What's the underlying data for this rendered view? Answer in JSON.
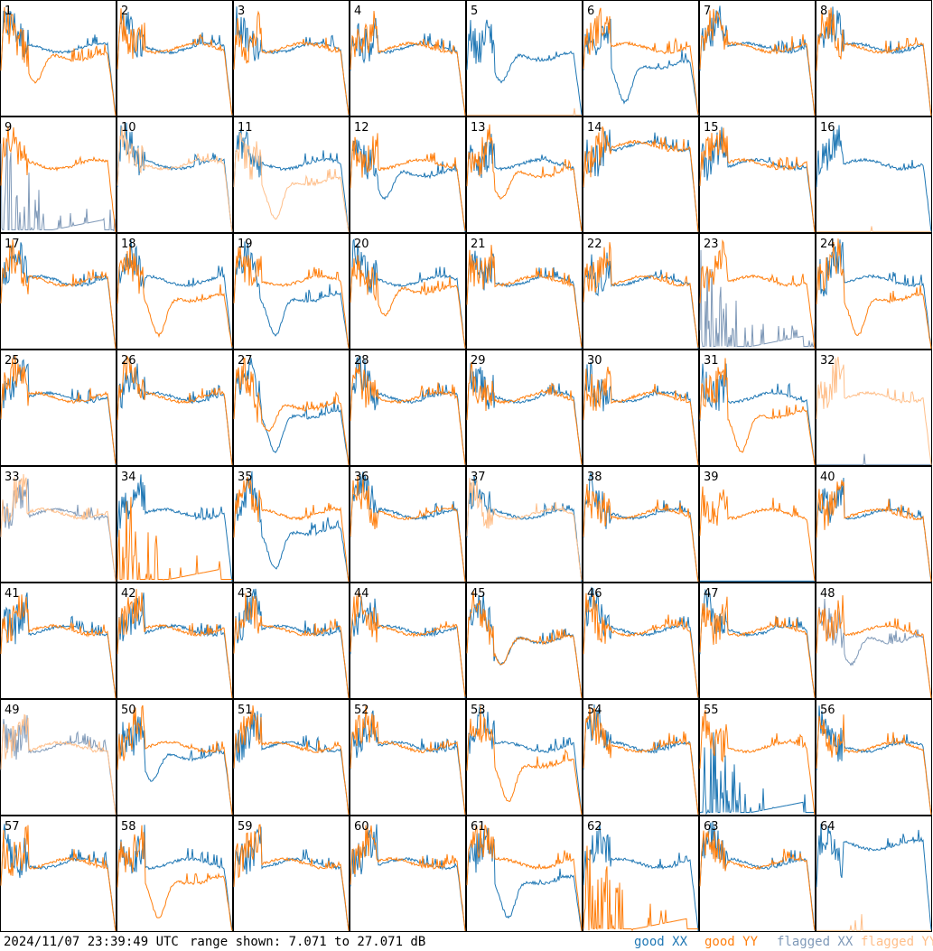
{
  "timestamp": "2024/11/07 23:39:49 UTC",
  "range_label": "range shown: 7.071 to 27.071 dB",
  "legend": {
    "good_xx": "good XX",
    "good_yy": "good YY",
    "flagged_xx": "flagged XX",
    "flagged_yy": "flagged YY"
  },
  "colors": {
    "good_xx": "#1f77b4",
    "good_yy": "#ff7f0e",
    "flagged_xx": "#7f99b8",
    "flagged_yy": "#ffbf8a",
    "frame": "#000000"
  },
  "chart_data": {
    "type": "line",
    "y_range_db": [
      7.071,
      27.071
    ],
    "layout": "8x8 grid of small multiples",
    "panels": [
      {
        "id": "1",
        "xx": "good",
        "yy": "good",
        "xx_shape": "normal",
        "yy_shape": "dip"
      },
      {
        "id": "2",
        "xx": "good",
        "yy": "good",
        "xx_shape": "normal",
        "yy_shape": "normal"
      },
      {
        "id": "3",
        "xx": "good",
        "yy": "good",
        "xx_shape": "normal",
        "yy_shape": "normal"
      },
      {
        "id": "4",
        "xx": "good",
        "yy": "good",
        "xx_shape": "normal",
        "yy_shape": "normal"
      },
      {
        "id": "5",
        "xx": "good",
        "yy": "flagged",
        "xx_shape": "dip",
        "yy_shape": "flat"
      },
      {
        "id": "6",
        "xx": "good",
        "yy": "good",
        "xx_shape": "lowdip",
        "yy_shape": "normal"
      },
      {
        "id": "7",
        "xx": "good",
        "yy": "good",
        "xx_shape": "normal",
        "yy_shape": "normal"
      },
      {
        "id": "8",
        "xx": "good",
        "yy": "good",
        "xx_shape": "normal",
        "yy_shape": "normal"
      },
      {
        "id": "9",
        "xx": "flagged",
        "yy": "good",
        "xx_shape": "spiky",
        "yy_shape": "normal"
      },
      {
        "id": "10",
        "xx": "good",
        "yy": "flagged",
        "xx_shape": "normal",
        "yy_shape": "normal"
      },
      {
        "id": "11",
        "xx": "good",
        "yy": "flagged",
        "xx_shape": "normal",
        "yy_shape": "lowdip"
      },
      {
        "id": "12",
        "xx": "good",
        "yy": "good",
        "xx_shape": "dip",
        "yy_shape": "normal"
      },
      {
        "id": "13",
        "xx": "good",
        "yy": "good",
        "xx_shape": "normal",
        "yy_shape": "dip"
      },
      {
        "id": "14",
        "xx": "good",
        "yy": "good",
        "xx_shape": "high",
        "yy_shape": "high"
      },
      {
        "id": "15",
        "xx": "good",
        "yy": "good",
        "xx_shape": "normal",
        "yy_shape": "normal"
      },
      {
        "id": "16",
        "xx": "good",
        "yy": "flagged",
        "xx_shape": "normal",
        "yy_shape": "flat"
      },
      {
        "id": "17",
        "xx": "good",
        "yy": "good",
        "xx_shape": "normal",
        "yy_shape": "normal"
      },
      {
        "id": "18",
        "xx": "good",
        "yy": "good",
        "xx_shape": "normal",
        "yy_shape": "lowdip"
      },
      {
        "id": "19",
        "xx": "good",
        "yy": "good",
        "xx_shape": "lowdip",
        "yy_shape": "normal"
      },
      {
        "id": "20",
        "xx": "good",
        "yy": "good",
        "xx_shape": "normal",
        "yy_shape": "dip"
      },
      {
        "id": "21",
        "xx": "good",
        "yy": "good",
        "xx_shape": "normal",
        "yy_shape": "normal"
      },
      {
        "id": "22",
        "xx": "good",
        "yy": "good",
        "xx_shape": "normal",
        "yy_shape": "normal"
      },
      {
        "id": "23",
        "xx": "flagged",
        "yy": "good",
        "xx_shape": "spiky",
        "yy_shape": "normal"
      },
      {
        "id": "24",
        "xx": "good",
        "yy": "good",
        "xx_shape": "normal",
        "yy_shape": "lowdip"
      },
      {
        "id": "25",
        "xx": "good",
        "yy": "good",
        "xx_shape": "normal",
        "yy_shape": "normal"
      },
      {
        "id": "26",
        "xx": "good",
        "yy": "good",
        "xx_shape": "normal",
        "yy_shape": "normal"
      },
      {
        "id": "27",
        "xx": "good",
        "yy": "good",
        "xx_shape": "lowdip",
        "yy_shape": "dip"
      },
      {
        "id": "28",
        "xx": "good",
        "yy": "good",
        "xx_shape": "normal",
        "yy_shape": "normal"
      },
      {
        "id": "29",
        "xx": "good",
        "yy": "good",
        "xx_shape": "normal",
        "yy_shape": "normal"
      },
      {
        "id": "30",
        "xx": "good",
        "yy": "good",
        "xx_shape": "normal",
        "yy_shape": "normal"
      },
      {
        "id": "31",
        "xx": "good",
        "yy": "good",
        "xx_shape": "normal",
        "yy_shape": "lowdip"
      },
      {
        "id": "32",
        "xx": "flagged",
        "yy": "flagged",
        "xx_shape": "flat",
        "yy_shape": "normal"
      },
      {
        "id": "33",
        "xx": "flagged",
        "yy": "flagged",
        "xx_shape": "normal",
        "yy_shape": "normal"
      },
      {
        "id": "34",
        "xx": "good",
        "yy": "good",
        "xx_shape": "normal",
        "yy_shape": "spiky"
      },
      {
        "id": "35",
        "xx": "good",
        "yy": "good",
        "xx_shape": "lowdip",
        "yy_shape": "normal"
      },
      {
        "id": "36",
        "xx": "good",
        "yy": "good",
        "xx_shape": "normal",
        "yy_shape": "normal"
      },
      {
        "id": "37",
        "xx": "good",
        "yy": "flagged",
        "xx_shape": "normal",
        "yy_shape": "normal"
      },
      {
        "id": "38",
        "xx": "good",
        "yy": "good",
        "xx_shape": "normal",
        "yy_shape": "normal"
      },
      {
        "id": "39",
        "xx": "good",
        "yy": "good",
        "xx_shape": "flat",
        "yy_shape": "normal"
      },
      {
        "id": "40",
        "xx": "good",
        "yy": "good",
        "xx_shape": "normal",
        "yy_shape": "normal"
      },
      {
        "id": "41",
        "xx": "good",
        "yy": "good",
        "xx_shape": "normal",
        "yy_shape": "normal"
      },
      {
        "id": "42",
        "xx": "good",
        "yy": "good",
        "xx_shape": "normal",
        "yy_shape": "normal"
      },
      {
        "id": "43",
        "xx": "good",
        "yy": "good",
        "xx_shape": "normal",
        "yy_shape": "normal"
      },
      {
        "id": "44",
        "xx": "good",
        "yy": "good",
        "xx_shape": "normal",
        "yy_shape": "normal"
      },
      {
        "id": "45",
        "xx": "good",
        "yy": "good",
        "xx_shape": "dip",
        "yy_shape": "dip"
      },
      {
        "id": "46",
        "xx": "good",
        "yy": "good",
        "xx_shape": "normal",
        "yy_shape": "normal"
      },
      {
        "id": "47",
        "xx": "good",
        "yy": "good",
        "xx_shape": "normal",
        "yy_shape": "normal"
      },
      {
        "id": "48",
        "xx": "flagged",
        "yy": "good",
        "xx_shape": "dip",
        "yy_shape": "normal"
      },
      {
        "id": "49",
        "xx": "flagged",
        "yy": "flagged",
        "xx_shape": "normal",
        "yy_shape": "normal"
      },
      {
        "id": "50",
        "xx": "good",
        "yy": "good",
        "xx_shape": "dip",
        "yy_shape": "normal"
      },
      {
        "id": "51",
        "xx": "good",
        "yy": "good",
        "xx_shape": "normal",
        "yy_shape": "normal"
      },
      {
        "id": "52",
        "xx": "good",
        "yy": "good",
        "xx_shape": "normal",
        "yy_shape": "normal"
      },
      {
        "id": "53",
        "xx": "good",
        "yy": "good",
        "xx_shape": "normal",
        "yy_shape": "lowdip"
      },
      {
        "id": "54",
        "xx": "good",
        "yy": "good",
        "xx_shape": "normal",
        "yy_shape": "normal"
      },
      {
        "id": "55",
        "xx": "good",
        "yy": "good",
        "xx_shape": "spiky",
        "yy_shape": "normal"
      },
      {
        "id": "56",
        "xx": "good",
        "yy": "good",
        "xx_shape": "normal",
        "yy_shape": "normal"
      },
      {
        "id": "57",
        "xx": "good",
        "yy": "good",
        "xx_shape": "normal",
        "yy_shape": "normal"
      },
      {
        "id": "58",
        "xx": "good",
        "yy": "good",
        "xx_shape": "normal",
        "yy_shape": "lowdip"
      },
      {
        "id": "59",
        "xx": "good",
        "yy": "good",
        "xx_shape": "normal",
        "yy_shape": "normal"
      },
      {
        "id": "60",
        "xx": "good",
        "yy": "good",
        "xx_shape": "normal",
        "yy_shape": "normal"
      },
      {
        "id": "61",
        "xx": "good",
        "yy": "good",
        "xx_shape": "lowdip",
        "yy_shape": "normal"
      },
      {
        "id": "62",
        "xx": "good",
        "yy": "good",
        "xx_shape": "normal",
        "yy_shape": "spiky"
      },
      {
        "id": "63",
        "xx": "good",
        "yy": "good",
        "xx_shape": "normal",
        "yy_shape": "normal"
      },
      {
        "id": "64",
        "xx": "good",
        "yy": "flagged",
        "xx_shape": "high",
        "yy_shape": "flat"
      }
    ]
  }
}
